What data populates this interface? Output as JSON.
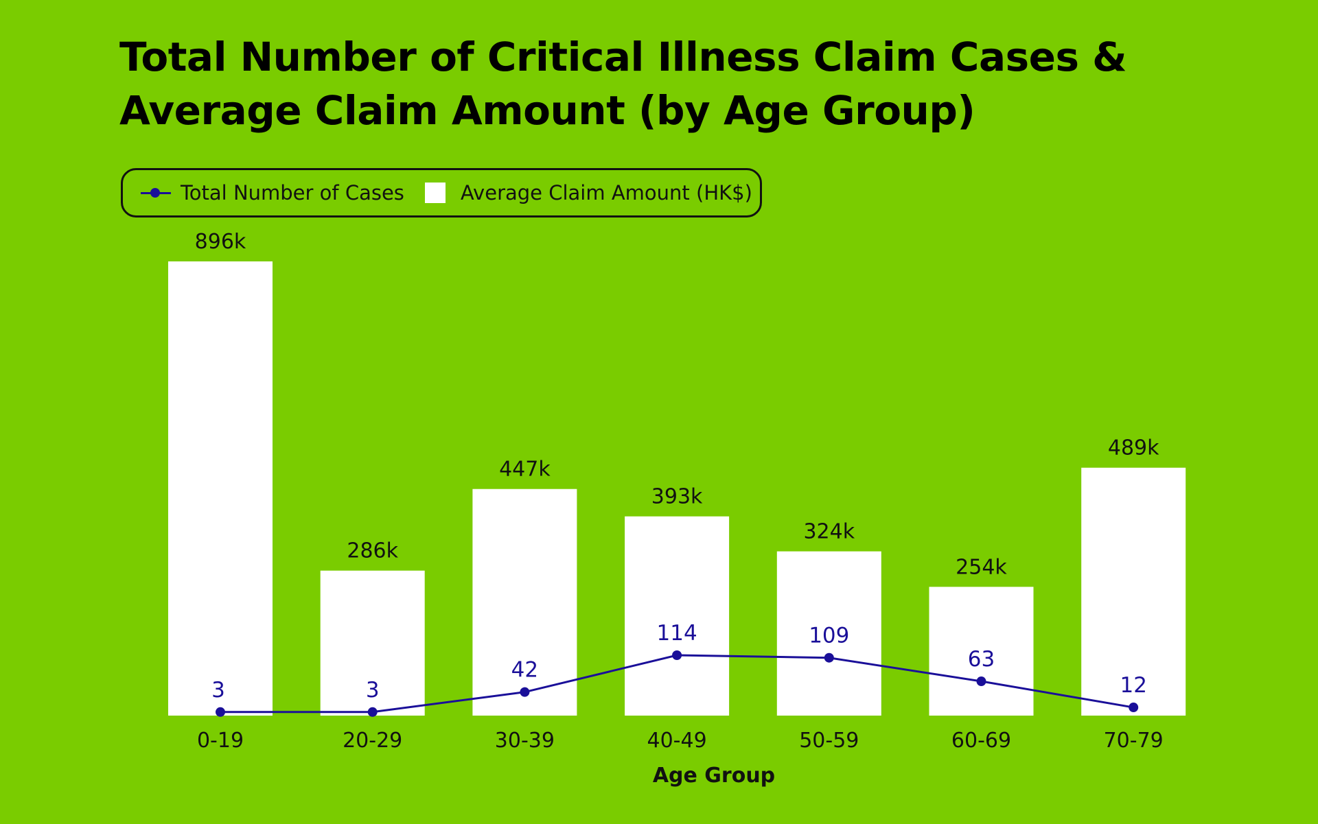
{
  "chart_data": {
    "type": "bar",
    "title_lines": [
      "Total Number of Critical Illness Claim Cases &",
      "Average Claim Amount (by Age Group)"
    ],
    "xlabel": "Age Group",
    "categories": [
      "0-19",
      "20-29",
      "30-39",
      "40-49",
      "50-59",
      "60-69",
      "70-79"
    ],
    "series": [
      {
        "name": "Average Claim Amount (HK$)",
        "kind": "bar",
        "values": [
          896000,
          286000,
          447000,
          393000,
          324000,
          254000,
          489000
        ],
        "labels": [
          "896k",
          "286k",
          "447k",
          "393k",
          "324k",
          "254k",
          "489k"
        ],
        "color": "#ffffff"
      },
      {
        "name": "Total Number of Cases",
        "kind": "line",
        "values": [
          3,
          3,
          42,
          114,
          109,
          63,
          12
        ],
        "labels": [
          "3",
          "3",
          "42",
          "114",
          "109",
          "63",
          "12"
        ],
        "color": "#1a0f99"
      }
    ],
    "bar_ylim": [
      0,
      896000
    ],
    "line_ylim": [
      0,
      1000
    ],
    "legend_position": "top-left",
    "grid": false
  },
  "colors": {
    "background": "#7acc00",
    "bar": "#ffffff",
    "line": "#1a0f99",
    "text": "#111111"
  }
}
